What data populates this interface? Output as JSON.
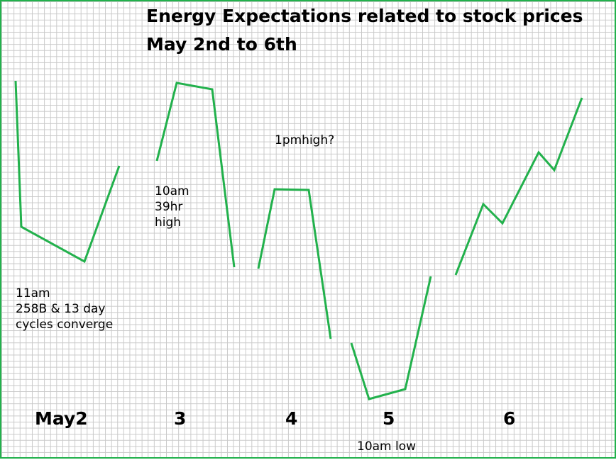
{
  "title": "Energy Expectations related to stock prices",
  "subtitle": "May 2nd to 6th",
  "annotations": {
    "may2_line1": "11am",
    "may2_line2": "258B & 13 day",
    "may2_line3": "cycles converge",
    "may3_line1": "10am",
    "may3_line2": "39hr",
    "may3_line3": "high",
    "may4": "1pmhigh?",
    "may5": "10am low"
  },
  "day_labels": [
    "May2",
    "3",
    "4",
    "5",
    "6"
  ],
  "colors": {
    "line": "#22b14c",
    "grid": "#c9c9c9",
    "border": "#22b14c"
  },
  "chart_data": {
    "type": "line",
    "title": "Energy Expectations related to stock prices",
    "subtitle": "May 2nd to 6th",
    "categories": [
      "May2",
      "3",
      "4",
      "5",
      "6"
    ],
    "grid": true,
    "y_axis_labeled": false,
    "x_range": [
      0,
      868
    ],
    "y_range": [
      0,
      647
    ],
    "series": [
      {
        "segment": "may2",
        "points": [
          [
            20,
            112
          ],
          [
            28,
            318
          ],
          [
            117,
            367
          ],
          [
            166,
            232
          ]
        ]
      },
      {
        "segment": "may3",
        "points": [
          [
            219,
            225
          ],
          [
            247,
            115
          ],
          [
            297,
            124
          ],
          [
            328,
            375
          ]
        ]
      },
      {
        "segment": "may4",
        "points": [
          [
            362,
            377
          ],
          [
            385,
            265
          ],
          [
            433,
            266
          ],
          [
            464,
            476
          ]
        ]
      },
      {
        "segment": "may5",
        "points": [
          [
            493,
            482
          ],
          [
            518,
            561
          ],
          [
            569,
            547
          ],
          [
            605,
            388
          ]
        ]
      },
      {
        "segment": "may6",
        "points": [
          [
            640,
            386
          ],
          [
            679,
            286
          ],
          [
            706,
            313
          ],
          [
            757,
            213
          ],
          [
            779,
            238
          ],
          [
            818,
            136
          ]
        ]
      }
    ]
  }
}
